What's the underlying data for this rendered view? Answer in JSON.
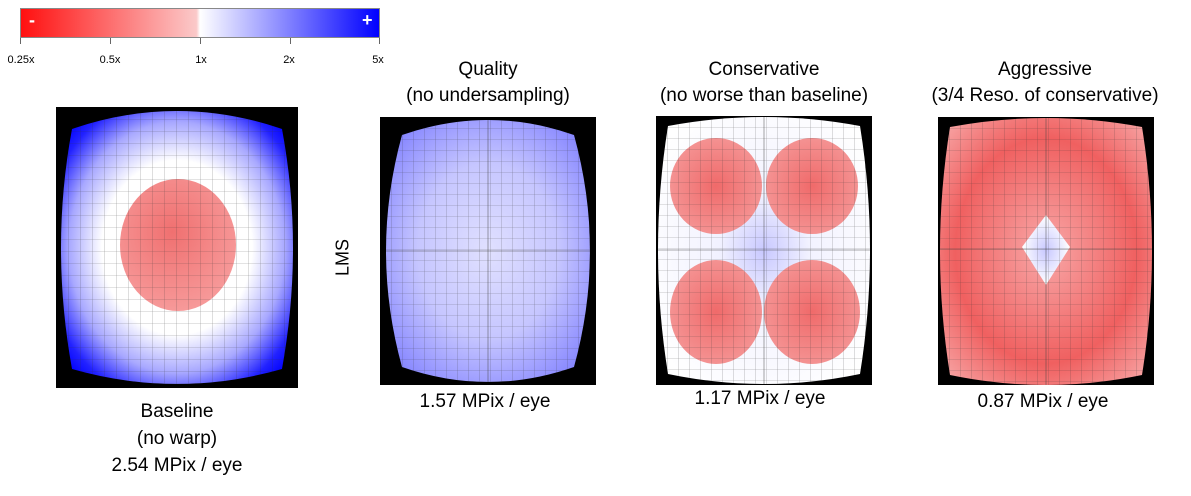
{
  "colorbar": {
    "minus_sign": "-",
    "plus_sign": "+",
    "ticks": [
      "0.25x",
      "0.5x",
      "1x",
      "2x",
      "5x"
    ],
    "colors": {
      "low": "#ff0000",
      "mid": "#ffffff",
      "high": "#0000ff"
    }
  },
  "row_label": "LMS",
  "panels": [
    {
      "title_line1": "",
      "title_line2": "",
      "caption_line1": "Baseline",
      "caption_line2": "(no warp)",
      "caption_line3": "2.54 MPix / eye"
    },
    {
      "title_line1": "Quality",
      "title_line2": "(no undersampling)",
      "caption_line1": "1.57 MPix / eye"
    },
    {
      "title_line1": "Conservative",
      "title_line2": "(no worse than baseline)",
      "caption_line1": "1.17 MPix / eye"
    },
    {
      "title_line1": "Aggressive",
      "title_line2": "(3/4 Reso. of conservative)",
      "caption_line1": "0.87 MPix / eye"
    }
  ]
}
